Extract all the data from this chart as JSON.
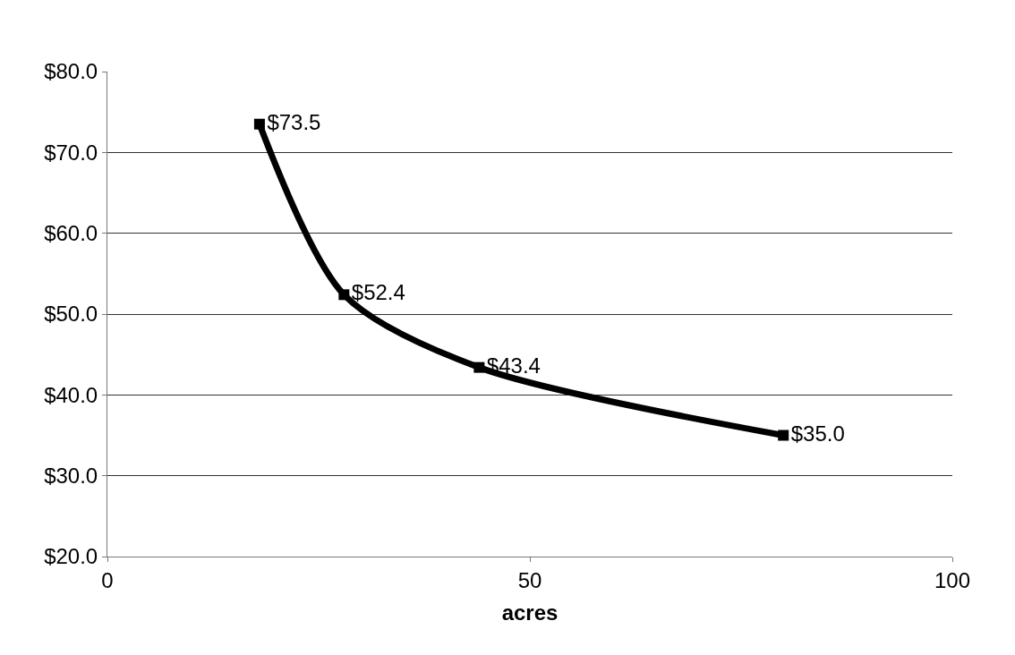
{
  "chart_data": {
    "type": "line",
    "xlabel": "acres",
    "x": [
      18,
      28,
      44,
      80
    ],
    "series": [
      {
        "color": "#000000",
        "values": [
          73.5,
          52.4,
          43.4,
          35.0
        ],
        "value_labels": [
          "$73.5",
          "$52.4",
          "$43.4",
          "$35.0"
        ]
      }
    ],
    "xlim": [
      0,
      100
    ],
    "xticks": [
      0,
      50,
      100
    ],
    "ylim": [
      20,
      80
    ],
    "yticks": [
      {
        "value": 20,
        "label": "$20.0"
      },
      {
        "value": 30,
        "label": "$30.0"
      },
      {
        "value": 40,
        "label": "$40.0"
      },
      {
        "value": 50,
        "label": "$50.0"
      },
      {
        "value": 60,
        "label": "$60.0"
      },
      {
        "value": 70,
        "label": "$70.0"
      },
      {
        "value": 80,
        "label": "$80.0"
      }
    ],
    "grid": "y",
    "marker": "square",
    "line_style": "solid",
    "legend": false
  }
}
